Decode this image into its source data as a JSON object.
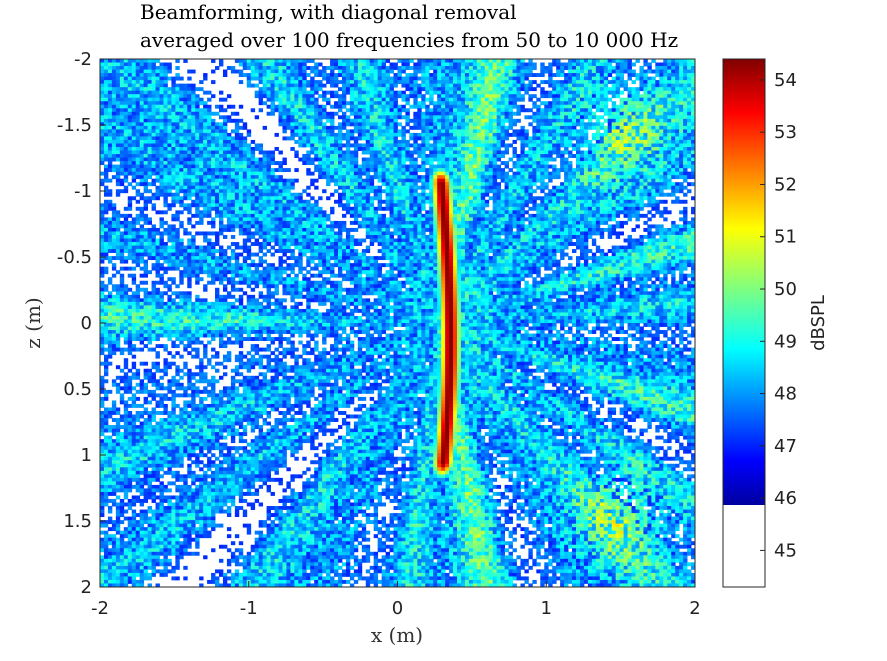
{
  "chart_data": {
    "type": "heatmap",
    "title_lines": [
      "Beamforming, with diagonal removal",
      "averaged over 100 frequencies from 50 to 10 000 Hz"
    ],
    "xlabel": "x (m)",
    "ylabel": "z (m)",
    "xlim": [
      -2,
      2
    ],
    "ylim": [
      -2,
      2
    ],
    "y_reversed": true,
    "x_ticks": [
      -2,
      -1,
      0,
      1,
      2
    ],
    "x_tick_labels": [
      "-2",
      "-1",
      "0",
      "1",
      "2"
    ],
    "y_ticks": [
      -2,
      -1.5,
      -1,
      -0.5,
      0,
      0.5,
      1,
      1.5,
      2
    ],
    "y_tick_labels": [
      "-2",
      "-1.5",
      "-1",
      "-0.5",
      "0",
      "0.5",
      "1",
      "1.5",
      "2"
    ],
    "colorbar": {
      "label": "dBSPL",
      "clim": [
        44.3,
        54.4
      ],
      "threshold": 45.9,
      "below_threshold_color": "#ffffff",
      "colormap": "jet",
      "ticks": [
        45,
        46,
        47,
        48,
        49,
        50,
        51,
        52,
        53,
        54
      ],
      "tick_labels": [
        "45",
        "46",
        "47",
        "48",
        "49",
        "50",
        "51",
        "52",
        "53",
        "54"
      ]
    },
    "peak_source": {
      "x": 0.28,
      "z_range": [
        -1.05,
        1.05
      ],
      "peak_level": 54.4
    },
    "grid": false
  }
}
